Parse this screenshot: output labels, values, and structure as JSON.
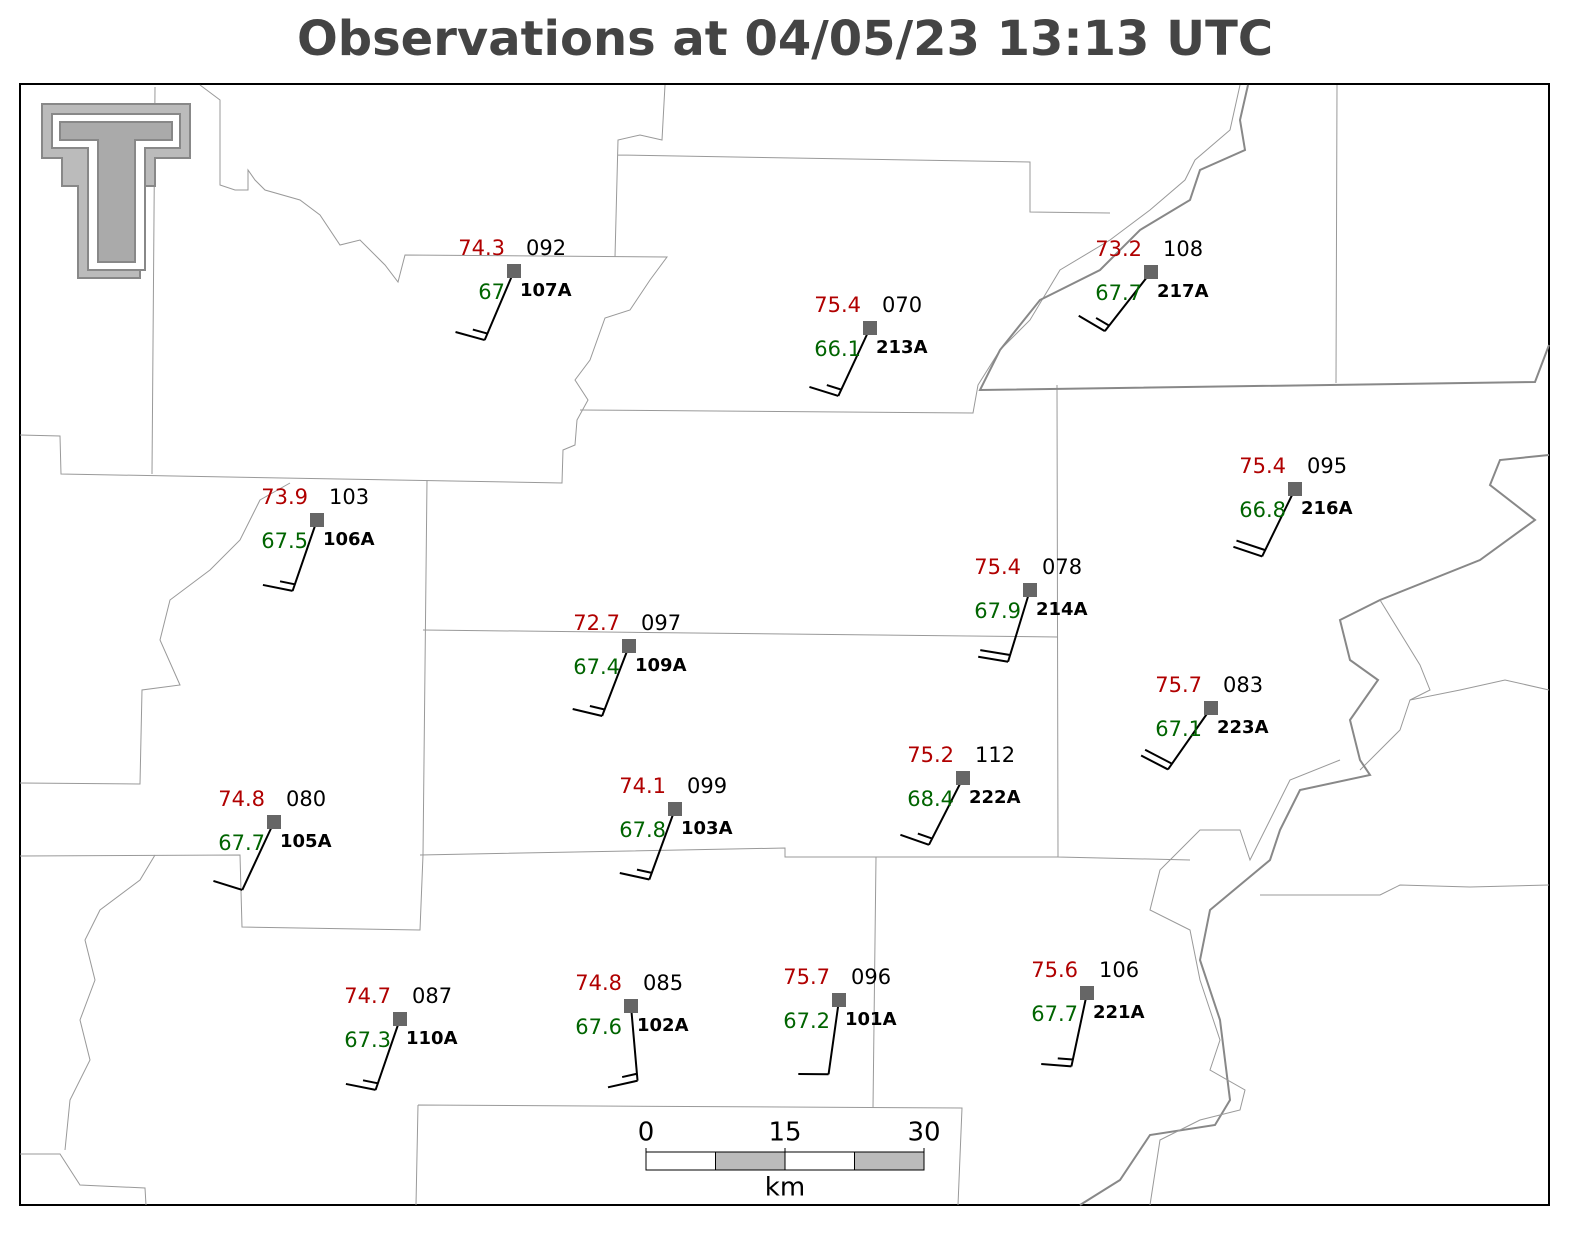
{
  "title": "Observations at 04/05/23 13:13 UTC",
  "stations": [
    {
      "id": "107A",
      "temperature": 74.3,
      "dewpoint": 67.0,
      "pressure": "092",
      "wind_direction": 203,
      "wind_speed": 15
    },
    {
      "id": "213A",
      "temperature": 75.4,
      "dewpoint": 66.1,
      "pressure": "070",
      "wind_direction": 205,
      "wind_speed": 15
    },
    {
      "id": "217A",
      "temperature": 73.2,
      "dewpoint": 67.7,
      "pressure": "108",
      "wind_direction": 218,
      "wind_speed": 15
    },
    {
      "id": "216A",
      "temperature": 75.4,
      "dewpoint": 66.8,
      "pressure": "095",
      "wind_direction": 206,
      "wind_speed": 20
    },
    {
      "id": "106A",
      "temperature": 73.9,
      "dewpoint": 67.5,
      "pressure": "103",
      "wind_direction": 199,
      "wind_speed": 15
    },
    {
      "id": "214A",
      "temperature": 75.4,
      "dewpoint": 67.9,
      "pressure": "078",
      "wind_direction": 197,
      "wind_speed": 20
    },
    {
      "id": "109A",
      "temperature": 72.7,
      "dewpoint": 67.4,
      "pressure": "097",
      "wind_direction": 201,
      "wind_speed": 15
    },
    {
      "id": "223A",
      "temperature": 75.7,
      "dewpoint": 67.1,
      "pressure": "083",
      "wind_direction": 215,
      "wind_speed": 20
    },
    {
      "id": "222A",
      "temperature": 75.2,
      "dewpoint": 68.4,
      "pressure": "112",
      "wind_direction": 207,
      "wind_speed": 15
    },
    {
      "id": "105A",
      "temperature": 74.8,
      "dewpoint": 67.7,
      "pressure": "080",
      "wind_direction": 205,
      "wind_speed": 10
    },
    {
      "id": "103A",
      "temperature": 74.1,
      "dewpoint": 67.8,
      "pressure": "099",
      "wind_direction": 200,
      "wind_speed": 15
    },
    {
      "id": "110A",
      "temperature": 74.7,
      "dewpoint": 67.3,
      "pressure": "087",
      "wind_direction": 199,
      "wind_speed": 15
    },
    {
      "id": "102A",
      "temperature": 74.8,
      "dewpoint": 67.6,
      "pressure": "085",
      "wind_direction": 175,
      "wind_speed": 15
    },
    {
      "id": "101A",
      "temperature": 75.7,
      "dewpoint": 67.2,
      "pressure": "096",
      "wind_direction": 188,
      "wind_speed": 10
    },
    {
      "id": "221A",
      "temperature": 75.6,
      "dewpoint": 67.7,
      "pressure": "106",
      "wind_direction": 192,
      "wind_speed": 15
    }
  ],
  "scale_bar": {
    "ticks": [
      0,
      15,
      30
    ],
    "unit": "km"
  }
}
